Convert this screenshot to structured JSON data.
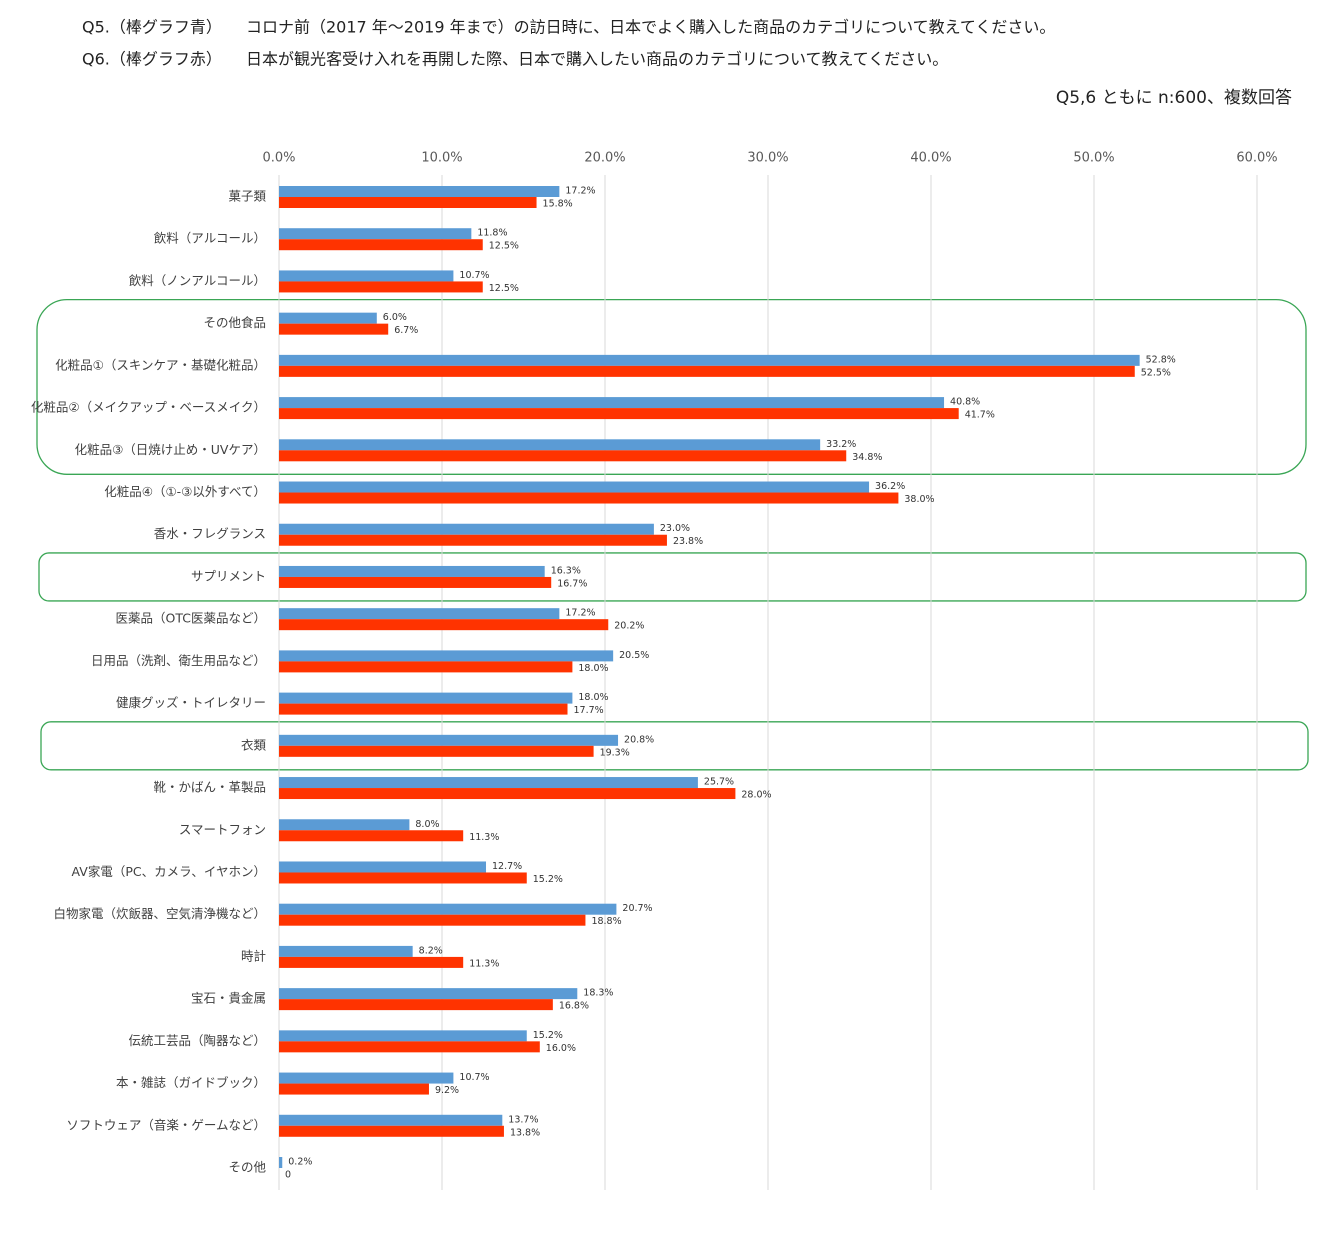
{
  "chart_data": {
    "type": "hbar",
    "questions": [
      {
        "label": "Q5.（棒グラフ青）",
        "text": "コロナ前（2017 年～2019 年まで）の訪日時に、日本でよく購入した商品のカテゴリについて教えてください。"
      },
      {
        "label": "Q6.（棒グラフ赤）",
        "text": "日本が観光客受け入れを再開した際、日本で購入したい商品のカテゴリについて教えてください。"
      }
    ],
    "note": "Q5,6 ともに n:600、複数回答",
    "categories": [
      "菓子類",
      "飲料（アルコール）",
      "飲料（ノンアルコール）",
      "その他食品",
      "化粧品①（スキンケア・基礎化粧品）",
      "化粧品②（メイクアップ・ベースメイク）",
      "化粧品③（日焼け止め・UVケア）",
      "化粧品④（①-③以外すべて）",
      "香水・フレグランス",
      "サプリメント",
      "医薬品（OTC医薬品など）",
      "日用品（洗剤、衛生用品など）",
      "健康グッズ・トイレタリー",
      "衣類",
      "靴・かばん・革製品",
      "スマートフォン",
      "AV家電（PC、カメラ、イヤホン）",
      "白物家電（炊飯器、空気清浄機など）",
      "時計",
      "宝石・貴金属",
      "伝統工芸品（陶器など）",
      "本・雑誌（ガイドブック）",
      "ソフトウェア（音楽・ゲームなど）",
      "その他"
    ],
    "series": [
      {
        "color": "#5b9bd5",
        "values": [
          17.2,
          11.8,
          10.7,
          6.0,
          52.8,
          40.8,
          33.2,
          36.2,
          23.0,
          16.3,
          17.2,
          20.5,
          18.0,
          20.8,
          25.7,
          8.0,
          12.7,
          20.7,
          8.2,
          18.3,
          15.2,
          10.7,
          13.7,
          0.2
        ],
        "value_labels": [
          "17.2%",
          "11.8%",
          "10.7%",
          "6.0%",
          "52.8%",
          "40.8%",
          "33.2%",
          "36.2%",
          "23.0%",
          "16.3%",
          "17.2%",
          "20.5%",
          "18.0%",
          "20.8%",
          "25.7%",
          "8.0%",
          "12.7%",
          "20.7%",
          "8.2%",
          "18.3%",
          "15.2%",
          "10.7%",
          "13.7%",
          "0.2%"
        ]
      },
      {
        "color": "#ff3300",
        "values": [
          15.8,
          12.5,
          12.5,
          6.7,
          52.5,
          41.7,
          34.8,
          38.0,
          23.8,
          16.7,
          20.2,
          18.0,
          17.7,
          19.3,
          28.0,
          11.3,
          15.2,
          18.8,
          11.3,
          16.8,
          16.0,
          9.2,
          13.8,
          0
        ],
        "value_labels": [
          "15.8%",
          "12.5%",
          "12.5%",
          "6.7%",
          "52.5%",
          "41.7%",
          "34.8%",
          "38.0%",
          "23.8%",
          "16.7%",
          "20.2%",
          "18.0%",
          "17.7%",
          "19.3%",
          "28.0%",
          "11.3%",
          "15.2%",
          "18.8%",
          "11.3%",
          "16.8%",
          "16.0%",
          "9.2%",
          "13.8%",
          "0"
        ]
      }
    ],
    "xlim": [
      0,
      60
    ],
    "xticks": [
      {
        "value": 0,
        "label": "0.0%"
      },
      {
        "value": 10,
        "label": "10.0%"
      },
      {
        "value": 20,
        "label": "20.0%"
      },
      {
        "value": 30,
        "label": "30.0%"
      },
      {
        "value": 40,
        "label": "40.0%"
      },
      {
        "value": 50,
        "label": "50.0%"
      },
      {
        "value": 60,
        "label": "60.0%"
      }
    ],
    "grid": true
  }
}
